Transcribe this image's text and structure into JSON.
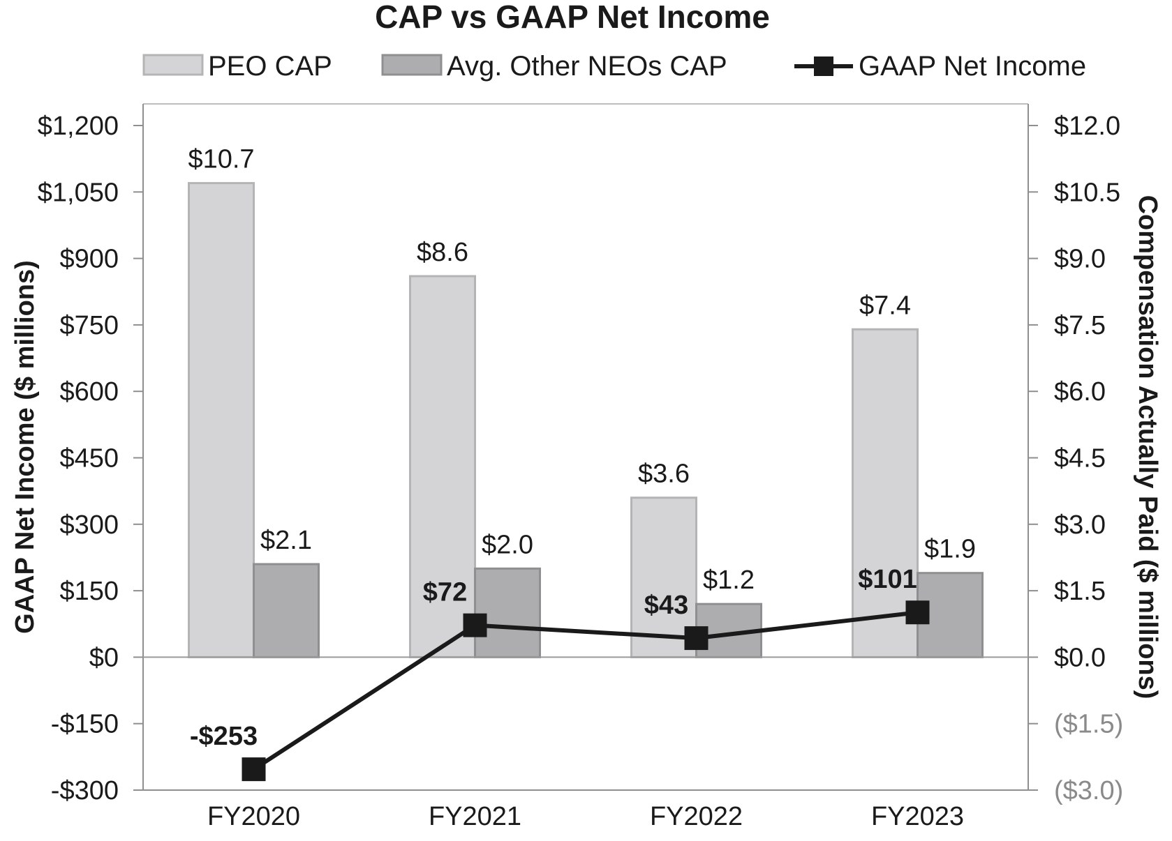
{
  "chart_data": {
    "type": "bar",
    "title": "CAP vs GAAP Net Income",
    "categories": [
      "FY2020",
      "FY2021",
      "FY2022",
      "FY2023"
    ],
    "series": [
      {
        "name": "PEO CAP",
        "axis": "right",
        "kind": "bar",
        "color": "#d4d4d6",
        "edge": "#b4b4b6",
        "values": [
          10.7,
          8.6,
          3.6,
          7.4
        ],
        "labels": [
          "$10.7",
          "$8.6",
          "$3.6",
          "$7.4"
        ]
      },
      {
        "name": "Avg. Other NEOs CAP",
        "axis": "right",
        "kind": "bar",
        "color": "#adadaf",
        "edge": "#8f8f91",
        "values": [
          2.1,
          2.0,
          1.2,
          1.9
        ],
        "labels": [
          "$2.1",
          "$2.0",
          "$1.2",
          "$1.9"
        ]
      },
      {
        "name": "GAAP Net Income",
        "axis": "left",
        "kind": "line",
        "color": "#1a1a1a",
        "values": [
          -253,
          72,
          43,
          101
        ],
        "labels": [
          "-$253",
          "$72",
          "$43",
          "$101"
        ]
      }
    ],
    "left_axis": {
      "label": "GAAP Net Income ($ millions)",
      "range": [
        -300,
        1200
      ],
      "ticks": [
        1200,
        1050,
        900,
        750,
        600,
        450,
        300,
        150,
        0,
        -150,
        -300
      ],
      "tick_labels": [
        "$1,200",
        "$1,050",
        "$900",
        "$750",
        "$600",
        "$450",
        "$300",
        "$150",
        "$0",
        "-$150",
        "-$300"
      ]
    },
    "right_axis": {
      "label": "Compensation Actually Paid ($ millions)",
      "range": [
        -3.0,
        12.0
      ],
      "ticks": [
        12.0,
        10.5,
        9.0,
        7.5,
        6.0,
        4.5,
        3.0,
        1.5,
        0.0,
        -1.5,
        -3.0
      ],
      "tick_labels": [
        "$12.0",
        "$10.5",
        "$9.0",
        "$7.5",
        "$6.0",
        "$4.5",
        "$3.0",
        "$1.5",
        "$0.0",
        "($1.5)",
        "($3.0)"
      ]
    },
    "grid": false,
    "legend_position": "top"
  }
}
